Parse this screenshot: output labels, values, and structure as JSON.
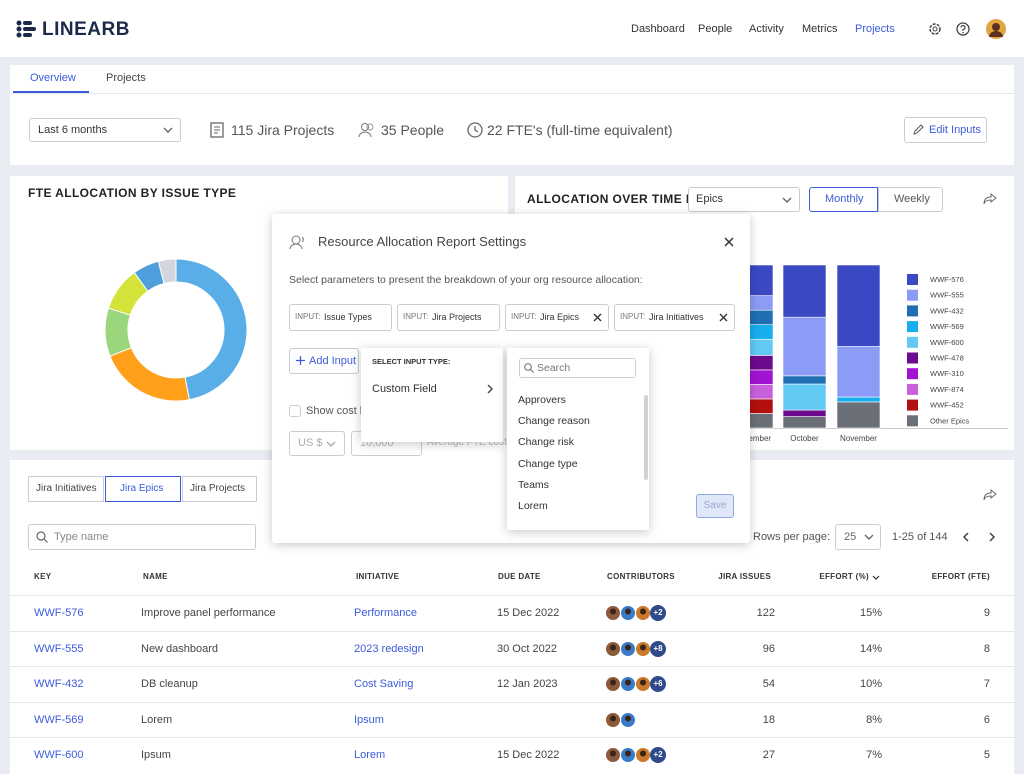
{
  "header": {
    "logo": "LINEARB",
    "nav": [
      "Dashboard",
      "People",
      "Activity",
      "Metrics",
      "Projects"
    ],
    "active_nav": 4
  },
  "tabs": {
    "items": [
      "Overview",
      "Projects"
    ],
    "active": 0
  },
  "filters": {
    "period": "Last 6 months",
    "projects": "115 Jira Projects",
    "people": "35 People",
    "fte": "22 FTE's (full-time equivalent)",
    "edit": "Edit Inputs"
  },
  "donut": {
    "title": "FTE ALLOCATION BY ISSUE TYPE",
    "values": [
      47,
      22,
      11,
      10,
      6,
      4
    ],
    "colors": [
      "#5aaee8",
      "#ff9f1a",
      "#9ad77c",
      "#d4e23a",
      "#4f9fdc",
      "#d3d6dc"
    ]
  },
  "allocation": {
    "title": "ALLOCATION OVER TIME BY",
    "group": "Epics",
    "views": [
      "Monthly",
      "Weekly"
    ],
    "active_view": 0,
    "categories": [
      "September",
      "October",
      "November"
    ],
    "series": [
      {
        "name": "WWF-576",
        "color": "#3b48c4",
        "values": [
          19,
          32,
          50
        ]
      },
      {
        "name": "WWF-555",
        "color": "#8c9bf5",
        "values": [
          9,
          36,
          31
        ]
      },
      {
        "name": "WWF-432",
        "color": "#1f6fb2",
        "values": [
          9,
          5,
          0
        ]
      },
      {
        "name": "WWF-569",
        "color": "#17aeee",
        "values": [
          9,
          0,
          3
        ]
      },
      {
        "name": "WWF-600",
        "color": "#62c9f5",
        "values": [
          10,
          16,
          0
        ]
      },
      {
        "name": "WWF-478",
        "color": "#6c0a8e",
        "values": [
          9,
          4,
          0
        ]
      },
      {
        "name": "WWF-310",
        "color": "#a312d2",
        "values": [
          9,
          0,
          0
        ]
      },
      {
        "name": "WWF-874",
        "color": "#c95fdd",
        "values": [
          9,
          0,
          0
        ]
      },
      {
        "name": "WWF-452",
        "color": "#b30f10",
        "values": [
          9,
          0,
          0
        ]
      },
      {
        "name": "Other Epics",
        "color": "#6b6f78",
        "values": [
          9,
          7,
          16
        ]
      }
    ]
  },
  "modal": {
    "title": "Resource Allocation Report Settings",
    "description": "Select parameters to present the breakdown of your org resource allocation:",
    "chips": [
      {
        "prefix": "INPUT:",
        "label": "Issue Types",
        "removable": false
      },
      {
        "prefix": "INPUT:",
        "label": "Jira Projects",
        "removable": false
      },
      {
        "prefix": "INPUT:",
        "label": "Jira Epics",
        "removable": true
      },
      {
        "prefix": "INPUT:",
        "label": "Jira Initiatives",
        "removable": true
      }
    ],
    "add_input": "Add Input",
    "show_cost": "Show cost breakdown",
    "currency": "US $",
    "cost": "10,000",
    "cost_label": "Average FTE cost",
    "save": "Save",
    "input_type_menu": {
      "heading": "SELECT INPUT TYPE:",
      "items": [
        "Custom Field"
      ]
    },
    "field_menu": {
      "search_placeholder": "Search",
      "items": [
        "Approvers",
        "Change reason",
        "Change risk",
        "Change type",
        "Teams",
        "Lorem"
      ]
    }
  },
  "table_panel": {
    "tabs": [
      "Jira Initiatives",
      "Jira Epics",
      "Jira Projects"
    ],
    "active_tab": 1,
    "search_placeholder": "Type name",
    "rows_per_page_label": "Rows per page:",
    "rows_per_page": "25",
    "range": "1-25 of 144"
  },
  "table": {
    "columns": [
      "KEY",
      "NAME",
      "INITIATIVE",
      "DUE DATE",
      "CONTRIBUTORS",
      "JIRA ISSUES",
      "EFFORT (%)",
      "EFFORT (FTE)"
    ],
    "rows": [
      {
        "key": "WWF-576",
        "name": "Improve panel performance",
        "initiative": "Performance",
        "due_date": "15 Dec 2022",
        "avatars": 3,
        "extra": "+2",
        "issues": 122,
        "effort_pct": "15%",
        "effort_fte": 9
      },
      {
        "key": "WWF-555",
        "name": "New dashboard",
        "initiative": "2023 redesign",
        "due_date": "30 Oct 2022",
        "avatars": 3,
        "extra": "+8",
        "issues": 96,
        "effort_pct": "14%",
        "effort_fte": 8
      },
      {
        "key": "WWF-432",
        "name": "DB cleanup",
        "initiative": "Cost Saving",
        "due_date": "12 Jan 2023",
        "avatars": 3,
        "extra": "+6",
        "issues": 54,
        "effort_pct": "10%",
        "effort_fte": 7
      },
      {
        "key": "WWF-569",
        "name": "Lorem",
        "initiative": "Ipsum",
        "due_date": null,
        "avatars": 2,
        "extra": null,
        "issues": 18,
        "effort_pct": "8%",
        "effort_fte": 6
      },
      {
        "key": "WWF-600",
        "name": "Ipsum",
        "initiative": "Lorem",
        "due_date": "15 Dec 2022",
        "avatars": 3,
        "extra": "+2",
        "issues": 27,
        "effort_pct": "7%",
        "effort_fte": 5
      }
    ]
  }
}
